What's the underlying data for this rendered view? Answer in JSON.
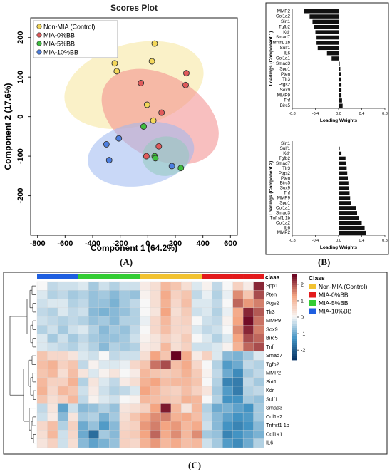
{
  "panel_labels": {
    "a": "(A)",
    "b": "(B)",
    "c": "(C)"
  },
  "chart_data": [
    {
      "type": "scatter",
      "title": "Scores Plot",
      "xlabel": "Component 1 (64.2%)",
      "ylabel": "Component 2 (17.6%)",
      "xlim": [
        -850,
        650
      ],
      "ylim": [
        -300,
        250
      ],
      "xticks": [
        "-800",
        "-600",
        "-400",
        "-200",
        "0",
        "200",
        "400",
        "600"
      ],
      "yticks": [
        "200",
        "100",
        "0",
        "-100",
        "-200"
      ],
      "xtick_values": [
        -800,
        -600,
        -400,
        -200,
        0,
        200,
        400,
        600
      ],
      "ytick_values": [
        200,
        100,
        0,
        -100,
        -200
      ],
      "legend_placement": "top-left",
      "grid": false,
      "series": [
        {
          "name": "Non-MIA (Control)",
          "color": "#f5e69a",
          "marker": "#f3d75a",
          "x": [
            -240,
            -225,
            30,
            50,
            40,
            -5
          ],
          "y": [
            135,
            115,
            140,
            185,
            -10,
            30
          ],
          "ellipse": {
            "cx": -100,
            "cy": 80,
            "rx": 300,
            "ry": 180,
            "angle": 75
          }
        },
        {
          "name": "MIA-0%BB",
          "color": "#f28b8b",
          "marker": "#e05a5a",
          "x": [
            -50,
            280,
            275,
            100,
            80,
            -10
          ],
          "y": [
            85,
            110,
            80,
            10,
            -75,
            -100
          ],
          "ellipse": {
            "cx": 90,
            "cy": 0,
            "rx": 300,
            "ry": 160,
            "angle": -60
          }
        },
        {
          "name": "MIA-5%BB",
          "color": "#86e07e",
          "marker": "#3fbf3f",
          "x": [
            -30,
            50,
            55,
            240
          ],
          "y": [
            -25,
            -100,
            -105,
            -130
          ],
          "ellipse": {
            "cx": 130,
            "cy": -100,
            "rx": 170,
            "ry": 50,
            "angle": -5
          }
        },
        {
          "name": "MIA-10%BB",
          "color": "#9db8f0",
          "marker": "#4d7fe0",
          "x": [
            -300,
            -280,
            -210,
            175
          ],
          "y": [
            -70,
            -110,
            -55,
            -125
          ],
          "ellipse": {
            "cx": -50,
            "cy": -95,
            "rx": 390,
            "ry": 80,
            "angle": -10
          }
        }
      ]
    },
    {
      "type": "bar",
      "orientation": "horizontal",
      "xlabel": "Loading Weights",
      "ylabel": "Loadings (Component 1)",
      "xlim": [
        -0.8,
        0.8
      ],
      "xticks": [
        "-0.8",
        "-0.4",
        "0.0",
        "0.4",
        "0.8"
      ],
      "xtick_values": [
        -0.8,
        -0.4,
        0,
        0.4,
        0.8
      ],
      "categories": [
        "MMP2",
        "Col1a2",
        "Sirt1",
        "Tgfb2",
        "Kdr",
        "Smad7",
        "Tnfrsf1 1b",
        "Sulf1",
        "IL6",
        "Col1a1",
        "Smad3",
        "Spp1",
        "Pten",
        "Tlr3",
        "Ptgs2",
        "Sox9",
        "MMP9",
        "Tnf",
        "Birc5"
      ],
      "values": [
        -0.6,
        -0.5,
        -0.45,
        -0.42,
        -0.4,
        -0.38,
        -0.38,
        -0.36,
        -0.2,
        -0.12,
        0.02,
        0.03,
        0.04,
        0.04,
        0.05,
        0.05,
        0.05,
        0.06,
        0.07
      ]
    },
    {
      "type": "bar",
      "orientation": "horizontal",
      "xlabel": "Loading Weights",
      "ylabel": "Loadings (Component 2)",
      "xlim": [
        -0.8,
        0.8
      ],
      "xticks": [
        "-0.8",
        "-0.4",
        "0.0",
        "0.4",
        "0.8"
      ],
      "xtick_values": [
        -0.8,
        -0.4,
        0,
        0.4,
        0.8
      ],
      "categories": [
        "Sirt1",
        "Sulf1",
        "Kdr",
        "Tgfb2",
        "Smad7",
        "Tlr3",
        "Ptgs2",
        "Pten",
        "Birc5",
        "Sox9",
        "Tnf",
        "MMP9",
        "Spp1",
        "Col1a1",
        "Smad3",
        "Tnfrsf1 1b",
        "Col1a2",
        "IL6",
        "MMP2"
      ],
      "values": [
        0.01,
        0.02,
        0.05,
        0.12,
        0.13,
        0.14,
        0.15,
        0.16,
        0.17,
        0.18,
        0.19,
        0.2,
        0.22,
        0.3,
        0.32,
        0.35,
        0.4,
        0.45,
        0.48
      ]
    },
    {
      "type": "heatmap",
      "row_labels": [
        "Spp1",
        "Pten",
        "Ptgs2",
        "Tlr3",
        "MMP9",
        "Sox9",
        "Birc5",
        "Tnf",
        "Smad7",
        "Tgfb2",
        "MMP2",
        "Sirt1",
        "Kdr",
        "Sulf1",
        "Smad3",
        "Col1a2",
        "Tnfrsf1 1b",
        "Col1a1",
        "IL6"
      ],
      "class_label": "class",
      "column_classes": [
        3,
        3,
        3,
        3,
        2,
        2,
        2,
        2,
        2,
        2,
        0,
        0,
        0,
        0,
        0,
        0,
        1,
        1,
        1,
        1,
        1,
        1
      ],
      "colorbar_ticks": [
        "2",
        "1",
        "0",
        "-1",
        "-2"
      ],
      "colorbar_tick_values": [
        2,
        1,
        0,
        -1,
        -2
      ],
      "zlim": [
        -2.6,
        2.6
      ],
      "legend_title": "Class",
      "legend_entries": [
        {
          "label": "Non-MIA (Control)",
          "color": "#f2c230"
        },
        {
          "label": "MIA-0%BB",
          "color": "#e31a1c"
        },
        {
          "label": "MIA-5%BB",
          "color": "#33cc33"
        },
        {
          "label": "MIA-10%BB",
          "color": "#1f5fe0"
        }
      ],
      "values": [
        [
          0.0,
          -0.4,
          -0.3,
          -0.3,
          -0.2,
          -0.6,
          -0.3,
          -0.5,
          -0.3,
          -0.3,
          0.2,
          0.4,
          1.0,
          0.8,
          0.4,
          -0.2,
          0.1,
          -0.4,
          0.0,
          0.6,
          0.2,
          2.3
        ],
        [
          -0.2,
          -0.5,
          -0.4,
          -0.6,
          -0.5,
          -0.7,
          -0.6,
          -0.8,
          -0.6,
          -0.7,
          0.1,
          0.4,
          1.2,
          0.6,
          0.8,
          -0.4,
          -0.1,
          -0.5,
          -0.1,
          1.5,
          0.8,
          2.0
        ],
        [
          -0.3,
          -0.2,
          -0.2,
          -0.5,
          -0.4,
          -0.7,
          -0.7,
          -0.9,
          -0.6,
          -0.4,
          0.0,
          0.4,
          1.1,
          0.5,
          0.9,
          -0.2,
          -0.2,
          -0.4,
          0.0,
          1.8,
          1.4,
          1.6
        ],
        [
          -0.4,
          -0.5,
          -0.2,
          -0.4,
          -0.3,
          -0.8,
          -0.9,
          -0.8,
          -0.7,
          -0.5,
          0.0,
          0.3,
          1.3,
          0.4,
          0.7,
          -0.3,
          -0.2,
          -0.5,
          -0.1,
          1.2,
          2.3,
          1.9
        ],
        [
          -0.3,
          -0.4,
          -0.5,
          -0.4,
          -0.5,
          -0.7,
          -0.6,
          -0.8,
          -0.5,
          -0.5,
          -0.1,
          0.5,
          1.0,
          0.5,
          0.6,
          0.0,
          -0.3,
          -0.4,
          0.1,
          1.3,
          2.5,
          1.7
        ],
        [
          -0.5,
          -0.3,
          -0.6,
          -0.3,
          -0.2,
          -0.5,
          -0.8,
          -0.6,
          -0.7,
          -0.4,
          0.0,
          0.5,
          0.9,
          0.5,
          0.5,
          -0.2,
          -0.4,
          -0.3,
          0.0,
          1.5,
          2.3,
          1.6
        ],
        [
          -0.2,
          -0.6,
          -0.3,
          -0.6,
          -0.4,
          -0.6,
          -0.7,
          -0.7,
          -0.6,
          -0.3,
          0.1,
          0.3,
          0.6,
          0.4,
          0.7,
          0.0,
          -0.2,
          -0.5,
          -0.2,
          1.3,
          2.0,
          1.8
        ],
        [
          -0.2,
          -0.3,
          -0.4,
          -0.5,
          -0.3,
          -0.5,
          -0.8,
          -0.5,
          -0.6,
          -0.5,
          0.2,
          0.3,
          1.0,
          0.4,
          0.6,
          -0.3,
          -0.3,
          -0.2,
          0.1,
          1.1,
          1.8,
          2.0
        ],
        [
          0.8,
          0.5,
          0.5,
          0.3,
          -0.2,
          -0.3,
          0.0,
          -0.4,
          -0.3,
          -0.3,
          0.4,
          1.3,
          0.8,
          2.6,
          1.2,
          0.2,
          0.6,
          -0.2,
          -0.8,
          -0.9,
          -0.6,
          -0.2
        ],
        [
          0.9,
          1.1,
          0.6,
          0.8,
          -0.4,
          0.1,
          -0.2,
          -0.2,
          -0.1,
          0.5,
          0.8,
          1.7,
          2.0,
          0.9,
          1.2,
          0.5,
          0.0,
          -0.5,
          -1.2,
          -1.0,
          -0.4,
          -0.5
        ],
        [
          0.8,
          1.0,
          0.4,
          0.9,
          0.3,
          -0.2,
          0.1,
          0.3,
          0.0,
          0.2,
          1.0,
          0.8,
          0.7,
          0.8,
          1.1,
          0.7,
          0.1,
          -0.4,
          -1.0,
          -1.4,
          -0.6,
          -0.4
        ],
        [
          1.0,
          0.6,
          0.6,
          1.1,
          -0.5,
          0.3,
          -0.2,
          -0.4,
          0.2,
          0.4,
          1.1,
          1.3,
          0.9,
          1.0,
          1.0,
          0.8,
          0.0,
          -0.5,
          -1.5,
          -1.6,
          -0.4,
          -0.6
        ],
        [
          1.1,
          0.5,
          1.0,
          0.8,
          -0.3,
          0.2,
          -0.3,
          -0.5,
          -0.4,
          -0.2,
          1.3,
          1.0,
          0.7,
          0.6,
          0.9,
          0.6,
          0.3,
          -0.6,
          -1.2,
          -1.6,
          -0.5,
          -0.4
        ],
        [
          0.8,
          0.4,
          0.6,
          1.0,
          -0.4,
          0.1,
          -0.2,
          -0.3,
          0.0,
          0.1,
          1.0,
          0.9,
          0.8,
          0.7,
          1.1,
          1.0,
          0.0,
          -0.5,
          -1.3,
          -1.3,
          -0.6,
          -0.7
        ],
        [
          -0.4,
          0.3,
          -1.1,
          -0.3,
          -0.8,
          -0.7,
          -0.5,
          -0.7,
          0.3,
          0.4,
          0.6,
          1.3,
          2.4,
          1.0,
          0.3,
          1.0,
          -0.5,
          -1.0,
          -0.9,
          -1.1,
          -1.3,
          -0.6
        ],
        [
          -0.3,
          0.2,
          -0.8,
          0.3,
          -0.6,
          -0.5,
          -0.9,
          -0.6,
          0.4,
          0.8,
          1.2,
          1.5,
          1.6,
          1.1,
          1.2,
          0.9,
          -0.4,
          -0.8,
          -1.1,
          -1.3,
          -1.2,
          -0.6
        ],
        [
          0.5,
          0.9,
          -0.5,
          0.6,
          -1.0,
          -0.7,
          -1.2,
          -0.8,
          0.5,
          0.6,
          1.4,
          1.6,
          1.3,
          1.4,
          1.0,
          1.2,
          -0.3,
          -0.8,
          -1.3,
          -1.5,
          -1.3,
          -0.8
        ],
        [
          0.4,
          1.0,
          -0.3,
          0.5,
          -1.0,
          -1.8,
          -0.6,
          -0.8,
          0.6,
          0.7,
          1.3,
          1.8,
          1.2,
          1.5,
          1.0,
          1.5,
          -0.6,
          -0.7,
          -1.5,
          -1.3,
          -1.1,
          -0.9
        ],
        [
          0.3,
          0.6,
          -0.3,
          0.4,
          -0.8,
          -1.1,
          -0.9,
          -0.7,
          0.6,
          0.5,
          1.1,
          1.4,
          1.0,
          1.2,
          0.9,
          1.0,
          -0.3,
          -0.6,
          -1.2,
          -1.4,
          -1.0,
          -0.5
        ]
      ]
    }
  ]
}
